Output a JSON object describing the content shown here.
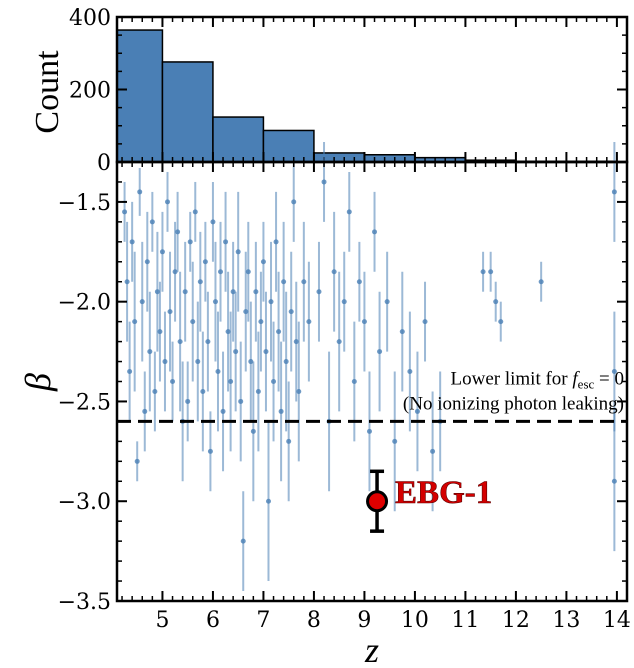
{
  "chart_data": [
    {
      "type": "bar",
      "ylabel": "Count",
      "ylim": [
        0,
        400
      ],
      "yticks": [
        0,
        200,
        400
      ],
      "bins": [
        {
          "x0": 4.1,
          "x1": 5.0,
          "count": 364
        },
        {
          "x0": 5.0,
          "x1": 6.0,
          "count": 276
        },
        {
          "x0": 6.0,
          "x1": 7.0,
          "count": 124
        },
        {
          "x0": 7.0,
          "x1": 8.0,
          "count": 87
        },
        {
          "x0": 8.0,
          "x1": 9.0,
          "count": 25
        },
        {
          "x0": 9.0,
          "x1": 10.0,
          "count": 20
        },
        {
          "x0": 10.0,
          "x1": 11.0,
          "count": 12
        },
        {
          "x0": 11.0,
          "x1": 12.0,
          "count": 5
        },
        {
          "x0": 12.0,
          "x1": 13.0,
          "count": 2
        },
        {
          "x0": 13.0,
          "x1": 14.0,
          "count": 2
        }
      ],
      "color": "#4a7fb5"
    },
    {
      "type": "scatter",
      "xlabel": "z",
      "ylabel": "β",
      "xlim": [
        4.1,
        14.2
      ],
      "ylim": [
        -3.5,
        -1.3
      ],
      "xticks": [
        5,
        6,
        7,
        8,
        9,
        10,
        11,
        12,
        13,
        14
      ],
      "yticks": [
        -1.5,
        -2.0,
        -2.5,
        -3.0,
        -3.5
      ],
      "ytick_labels": [
        "−1.5",
        "−2.0",
        "−2.5",
        "−3.0",
        "−3.5"
      ],
      "xtick_labels": [
        "5",
        "6",
        "7",
        "8",
        "9",
        "10",
        "11",
        "12",
        "13",
        "14"
      ],
      "sample_color": "#4a7fb5",
      "sample_points": [
        {
          "x": 4.25,
          "y": -1.55,
          "err": 0.15
        },
        {
          "x": 4.3,
          "y": -1.9,
          "err": 0.3
        },
        {
          "x": 4.35,
          "y": -2.35,
          "err": 0.25
        },
        {
          "x": 4.4,
          "y": -1.7,
          "err": 0.2
        },
        {
          "x": 4.45,
          "y": -2.1,
          "err": 0.35
        },
        {
          "x": 4.5,
          "y": -2.8,
          "err": 0.1
        },
        {
          "x": 4.55,
          "y": -1.45,
          "err": 0.12
        },
        {
          "x": 4.6,
          "y": -2.0,
          "err": 0.3
        },
        {
          "x": 4.65,
          "y": -2.55,
          "err": 0.2
        },
        {
          "x": 4.7,
          "y": -1.8,
          "err": 0.25
        },
        {
          "x": 4.75,
          "y": -2.25,
          "err": 0.3
        },
        {
          "x": 4.8,
          "y": -1.6,
          "err": 0.15
        },
        {
          "x": 4.85,
          "y": -2.45,
          "err": 0.2
        },
        {
          "x": 4.9,
          "y": -1.95,
          "err": 0.3
        },
        {
          "x": 4.95,
          "y": -2.15,
          "err": 0.25
        },
        {
          "x": 5.0,
          "y": -1.75,
          "err": 0.2
        },
        {
          "x": 5.05,
          "y": -2.3,
          "err": 0.25
        },
        {
          "x": 5.1,
          "y": -1.5,
          "err": 0.15
        },
        {
          "x": 5.15,
          "y": -2.05,
          "err": 0.3
        },
        {
          "x": 5.2,
          "y": -2.4,
          "err": 0.2
        },
        {
          "x": 5.25,
          "y": -1.85,
          "err": 0.25
        },
        {
          "x": 5.3,
          "y": -1.65,
          "err": 0.2
        },
        {
          "x": 5.35,
          "y": -2.2,
          "err": 0.35
        },
        {
          "x": 5.4,
          "y": -2.6,
          "err": 0.3
        },
        {
          "x": 5.45,
          "y": -1.95,
          "err": 0.25
        },
        {
          "x": 5.5,
          "y": -2.5,
          "err": 0.2
        },
        {
          "x": 5.55,
          "y": -1.7,
          "err": 0.15
        },
        {
          "x": 5.6,
          "y": -2.1,
          "err": 0.3
        },
        {
          "x": 5.65,
          "y": -1.55,
          "err": 0.15
        },
        {
          "x": 5.7,
          "y": -2.3,
          "err": 0.3
        },
        {
          "x": 5.75,
          "y": -1.9,
          "err": 0.25
        },
        {
          "x": 5.8,
          "y": -2.45,
          "err": 0.3
        },
        {
          "x": 5.85,
          "y": -1.8,
          "err": 0.2
        },
        {
          "x": 5.9,
          "y": -2.2,
          "err": 0.25
        },
        {
          "x": 5.95,
          "y": -2.75,
          "err": 0.2
        },
        {
          "x": 6.0,
          "y": -1.6,
          "err": 0.2
        },
        {
          "x": 6.05,
          "y": -2.0,
          "err": 0.3
        },
        {
          "x": 6.1,
          "y": -2.35,
          "err": 0.3
        },
        {
          "x": 6.15,
          "y": -1.85,
          "err": 0.25
        },
        {
          "x": 6.2,
          "y": -2.55,
          "err": 0.3
        },
        {
          "x": 6.25,
          "y": -1.7,
          "err": 0.25
        },
        {
          "x": 6.3,
          "y": -2.15,
          "err": 0.3
        },
        {
          "x": 6.35,
          "y": -2.4,
          "err": 0.35
        },
        {
          "x": 6.4,
          "y": -1.95,
          "err": 0.25
        },
        {
          "x": 6.45,
          "y": -2.25,
          "err": 0.3
        },
        {
          "x": 6.5,
          "y": -1.75,
          "err": 0.3
        },
        {
          "x": 6.55,
          "y": -2.5,
          "err": 0.3
        },
        {
          "x": 6.6,
          "y": -3.2,
          "err": 0.25
        },
        {
          "x": 6.65,
          "y": -2.05,
          "err": 0.3
        },
        {
          "x": 6.7,
          "y": -1.85,
          "err": 0.25
        },
        {
          "x": 6.75,
          "y": -2.3,
          "err": 0.3
        },
        {
          "x": 6.8,
          "y": -2.65,
          "err": 0.35
        },
        {
          "x": 6.85,
          "y": -1.95,
          "err": 0.25
        },
        {
          "x": 6.9,
          "y": -2.45,
          "err": 0.3
        },
        {
          "x": 6.95,
          "y": -2.1,
          "err": 0.25
        },
        {
          "x": 7.0,
          "y": -1.8,
          "err": 0.2
        },
        {
          "x": 7.05,
          "y": -2.25,
          "err": 0.3
        },
        {
          "x": 7.1,
          "y": -3.0,
          "err": 0.4
        },
        {
          "x": 7.15,
          "y": -2.0,
          "err": 0.3
        },
        {
          "x": 7.2,
          "y": -2.4,
          "err": 0.3
        },
        {
          "x": 7.25,
          "y": -1.7,
          "err": 0.25
        },
        {
          "x": 7.3,
          "y": -2.15,
          "err": 0.3
        },
        {
          "x": 7.35,
          "y": -2.55,
          "err": 0.35
        },
        {
          "x": 7.4,
          "y": -1.9,
          "err": 0.3
        },
        {
          "x": 7.45,
          "y": -2.3,
          "err": 0.35
        },
        {
          "x": 7.5,
          "y": -2.7,
          "err": 0.3
        },
        {
          "x": 7.55,
          "y": -2.05,
          "err": 0.3
        },
        {
          "x": 7.6,
          "y": -1.5,
          "err": 0.2
        },
        {
          "x": 7.65,
          "y": -2.2,
          "err": 0.3
        },
        {
          "x": 7.7,
          "y": -2.45,
          "err": 0.35
        },
        {
          "x": 7.8,
          "y": -1.9,
          "err": 0.3
        },
        {
          "x": 7.9,
          "y": -2.1,
          "err": 0.3
        },
        {
          "x": 8.1,
          "y": -1.95,
          "err": 0.25
        },
        {
          "x": 8.2,
          "y": -1.4,
          "err": 0.2
        },
        {
          "x": 8.3,
          "y": -2.6,
          "err": 0.35
        },
        {
          "x": 8.4,
          "y": -1.85,
          "err": 0.3
        },
        {
          "x": 8.5,
          "y": -2.2,
          "err": 0.35
        },
        {
          "x": 8.6,
          "y": -2.0,
          "err": 0.25
        },
        {
          "x": 8.7,
          "y": -1.55,
          "err": 0.2
        },
        {
          "x": 8.8,
          "y": -2.4,
          "err": 0.3
        },
        {
          "x": 8.9,
          "y": -1.9,
          "err": 0.2
        },
        {
          "x": 9.0,
          "y": -2.1,
          "err": 0.25
        },
        {
          "x": 9.1,
          "y": -2.65,
          "err": 0.3
        },
        {
          "x": 9.2,
          "y": -1.65,
          "err": 0.2
        },
        {
          "x": 9.3,
          "y": -2.25,
          "err": 0.3
        },
        {
          "x": 9.45,
          "y": -2.0,
          "err": 0.25
        },
        {
          "x": 9.6,
          "y": -2.7,
          "err": 0.35
        },
        {
          "x": 9.75,
          "y": -2.15,
          "err": 0.3
        },
        {
          "x": 9.9,
          "y": -2.35,
          "err": 0.3
        },
        {
          "x": 10.05,
          "y": -2.55,
          "err": 0.3
        },
        {
          "x": 10.2,
          "y": -2.1,
          "err": 0.2
        },
        {
          "x": 10.35,
          "y": -2.75,
          "err": 0.3
        },
        {
          "x": 10.5,
          "y": -2.6,
          "err": 0.25
        },
        {
          "x": 11.35,
          "y": -1.85,
          "err": 0.1
        },
        {
          "x": 11.5,
          "y": -1.85,
          "err": 0.1
        },
        {
          "x": 11.6,
          "y": -2.0,
          "err": 0.1
        },
        {
          "x": 11.7,
          "y": -2.1,
          "err": 0.1
        },
        {
          "x": 12.5,
          "y": -1.9,
          "err": 0.1
        },
        {
          "x": 13.95,
          "y": -1.45,
          "err": 0.25
        },
        {
          "x": 13.95,
          "y": -2.35,
          "err": 0.3
        },
        {
          "x": 13.95,
          "y": -2.9,
          "err": 0.35
        }
      ],
      "threshold": {
        "y": -2.6,
        "label_line1": "Lower limit for f",
        "label_sub": "esc",
        "label_tail": " = 0",
        "label_line2": "(No ionizing photon leaking)"
      },
      "highlight": {
        "name": "EBG-1",
        "x": 9.25,
        "y": -3.0,
        "err": 0.15,
        "color": "#e00000"
      }
    }
  ]
}
